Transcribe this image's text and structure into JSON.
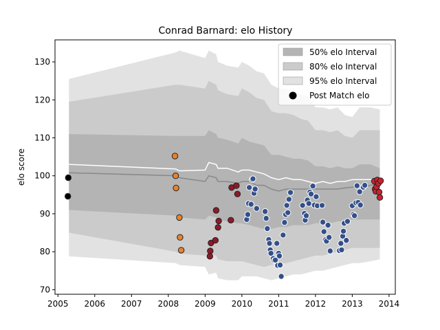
{
  "chart_data": {
    "type": "line",
    "title": "Conrad Barnard: elo History",
    "xlabel": "",
    "ylabel": "elo score",
    "xlim": [
      2004.92,
      2014.17
    ],
    "ylim": [
      68.8,
      135.8
    ],
    "xticks": [
      "2005",
      "2006",
      "2007",
      "2008",
      "2009",
      "2010",
      "2011",
      "2012",
      "2013",
      "2014"
    ],
    "yticks": [
      "70",
      "80",
      "90",
      "100",
      "110",
      "120",
      "130"
    ],
    "legend_position": "upper-right",
    "legend": [
      {
        "label": "50% elo Interval",
        "kind": "patch",
        "color": "#b4b4b4"
      },
      {
        "label": "80% elo Interval",
        "kind": "patch",
        "color": "#cbcbcb"
      },
      {
        "label": "95% elo Interval",
        "kind": "patch",
        "color": "#e2e2e2"
      },
      {
        "label": "Post Match elo",
        "kind": "marker",
        "color": "#000000"
      }
    ],
    "colors": {
      "band95": "#e2e2e2",
      "band80": "#cbcbcb",
      "band50": "#b4b4b4",
      "mean_line": "#ffffff",
      "median_line": "#888888",
      "orange": "#e8822e",
      "red": "#8b1a2a",
      "blue": "#34508a",
      "crimson": "#c8232e",
      "black": "#000000"
    },
    "bands": {
      "x": [
        2005.3,
        2008.2,
        2008.3,
        2009.0,
        2009.1,
        2009.3,
        2009.35,
        2009.6,
        2009.9,
        2010.0,
        2010.2,
        2010.4,
        2010.6,
        2010.8,
        2011.0,
        2011.2,
        2011.4,
        2011.6,
        2011.8,
        2012.0,
        2012.2,
        2012.4,
        2012.6,
        2012.8,
        2013.0,
        2013.2,
        2013.5,
        2013.75
      ],
      "p95_hi": [
        125.5,
        132.5,
        133.0,
        131.0,
        133.0,
        132.0,
        130.0,
        129.0,
        128.5,
        130.0,
        129.0,
        127.5,
        127.0,
        124.0,
        123.0,
        123.0,
        122.0,
        121.5,
        121.0,
        118.0,
        118.0,
        117.5,
        118.0,
        116.0,
        115.5,
        118.0,
        118.0,
        117.5
      ],
      "p80_hi": [
        119.5,
        124.0,
        124.0,
        123.0,
        125.0,
        124.0,
        122.5,
        121.5,
        121.0,
        123.0,
        122.0,
        120.5,
        120.0,
        117.0,
        116.5,
        116.5,
        116.0,
        115.0,
        114.5,
        112.0,
        112.0,
        111.5,
        112.0,
        110.5,
        110.0,
        112.0,
        112.0,
        112.0
      ],
      "p50_hi": [
        111.0,
        110.5,
        110.5,
        110.5,
        112.0,
        111.0,
        110.0,
        109.5,
        108.5,
        110.0,
        109.0,
        108.5,
        108.0,
        105.5,
        105.5,
        105.0,
        104.5,
        104.5,
        104.0,
        102.5,
        102.5,
        102.0,
        102.5,
        102.0,
        102.0,
        103.0,
        103.0,
        102.0
      ],
      "mean": [
        103.0,
        101.8,
        101.3,
        101.5,
        103.5,
        103.0,
        102.0,
        102.0,
        101.0,
        101.5,
        101.5,
        101.0,
        100.5,
        99.5,
        99.0,
        99.5,
        99.0,
        99.0,
        98.5,
        98.0,
        98.5,
        98.0,
        98.5,
        98.5,
        99.0,
        99.0,
        99.0,
        99.0
      ],
      "median": [
        100.8,
        100.0,
        99.5,
        98.5,
        100.0,
        99.5,
        98.5,
        98.5,
        98.0,
        98.5,
        98.5,
        97.5,
        97.5,
        96.5,
        96.0,
        96.5,
        96.5,
        96.5,
        96.5,
        96.5,
        96.5,
        96.5,
        96.5,
        96.8,
        97.0,
        97.0,
        97.5,
        98.0
      ],
      "p50_lo": [
        91.0,
        89.5,
        89.0,
        88.5,
        89.5,
        89.0,
        88.5,
        88.0,
        87.5,
        87.5,
        87.0,
        86.5,
        86.0,
        86.0,
        86.5,
        86.5,
        87.0,
        87.0,
        87.0,
        87.5,
        87.5,
        87.5,
        88.0,
        88.0,
        88.5,
        88.5,
        88.5,
        88.5
      ],
      "p80_lo": [
        85.0,
        80.0,
        79.5,
        79.0,
        79.5,
        79.0,
        78.0,
        77.5,
        77.5,
        77.5,
        77.0,
        76.5,
        76.0,
        76.5,
        77.0,
        77.0,
        77.5,
        78.0,
        78.5,
        79.0,
        79.0,
        79.5,
        80.0,
        80.5,
        81.0,
        81.0,
        81.0,
        81.0
      ],
      "p95_lo": [
        78.8,
        77.0,
        76.5,
        76.0,
        74.0,
        74.5,
        73.0,
        72.5,
        72.5,
        73.5,
        73.5,
        73.5,
        73.0,
        72.5,
        73.0,
        73.5,
        74.0,
        74.0,
        74.5,
        75.0,
        75.0,
        75.5,
        76.0,
        76.5,
        77.0,
        77.0,
        77.5,
        78.0
      ]
    },
    "series": [
      {
        "color_key": "black",
        "points": [
          [
            2005.28,
            99.5
          ],
          [
            2005.27,
            94.6
          ]
        ]
      },
      {
        "color_key": "orange",
        "points": [
          [
            2008.18,
            105.2
          ],
          [
            2008.2,
            100.0
          ],
          [
            2008.21,
            96.8
          ],
          [
            2008.3,
            89.0
          ],
          [
            2008.32,
            83.8
          ],
          [
            2008.35,
            80.4
          ]
        ]
      },
      {
        "color_key": "red",
        "points": [
          [
            2009.13,
            78.8
          ],
          [
            2009.14,
            80.2
          ],
          [
            2009.16,
            82.3
          ],
          [
            2009.28,
            83.0
          ],
          [
            2009.3,
            90.9
          ],
          [
            2009.35,
            86.4
          ],
          [
            2009.37,
            88.1
          ],
          [
            2009.7,
            88.3
          ],
          [
            2009.72,
            96.9
          ],
          [
            2009.85,
            97.4
          ],
          [
            2009.88,
            95.2
          ]
        ]
      },
      {
        "color_key": "blue",
        "points": [
          [
            2010.13,
            88.5
          ],
          [
            2010.16,
            89.8
          ],
          [
            2010.18,
            92.7
          ],
          [
            2010.2,
            96.9
          ],
          [
            2010.25,
            92.5
          ],
          [
            2010.28,
            99.0
          ],
          [
            2010.3,
            99.2
          ],
          [
            2010.33,
            95.4
          ],
          [
            2010.36,
            96.5
          ],
          [
            2010.4,
            91.4
          ],
          [
            2010.63,
            90.6
          ],
          [
            2010.66,
            88.8
          ],
          [
            2010.69,
            86.1
          ],
          [
            2010.73,
            83.2
          ],
          [
            2010.75,
            82.2
          ],
          [
            2010.77,
            80.5
          ],
          [
            2010.79,
            79.6
          ],
          [
            2010.85,
            78.2
          ],
          [
            2010.88,
            77.7
          ],
          [
            2010.91,
            77.8
          ],
          [
            2010.95,
            82.2
          ],
          [
            2010.97,
            76.4
          ],
          [
            2011.0,
            79.6
          ],
          [
            2011.02,
            78.9
          ],
          [
            2011.04,
            76.5
          ],
          [
            2011.07,
            73.5
          ],
          [
            2011.12,
            84.4
          ],
          [
            2011.16,
            87.7
          ],
          [
            2011.19,
            89.8
          ],
          [
            2011.22,
            92.2
          ],
          [
            2011.25,
            90.3
          ],
          [
            2011.28,
            93.8
          ],
          [
            2011.32,
            95.6
          ],
          [
            2011.65,
            92.2
          ],
          [
            2011.7,
            90.1
          ],
          [
            2011.72,
            88.3
          ],
          [
            2011.75,
            89.5
          ],
          [
            2011.78,
            93.6
          ],
          [
            2011.82,
            92.7
          ],
          [
            2011.85,
            95.7
          ],
          [
            2011.88,
            95.2
          ],
          [
            2011.93,
            97.3
          ],
          [
            2011.97,
            92.3
          ],
          [
            2012.02,
            94.5
          ],
          [
            2012.05,
            92.1
          ],
          [
            2012.18,
            92.2
          ],
          [
            2012.2,
            87.8
          ],
          [
            2012.23,
            85.3
          ],
          [
            2012.27,
            83.1
          ],
          [
            2012.3,
            82.8
          ],
          [
            2012.34,
            87.0
          ],
          [
            2012.37,
            83.8
          ],
          [
            2012.4,
            80.2
          ],
          [
            2012.65,
            80.3
          ],
          [
            2012.69,
            82.2
          ],
          [
            2012.71,
            80.5
          ],
          [
            2012.74,
            84.1
          ],
          [
            2012.76,
            85.4
          ],
          [
            2012.78,
            87.5
          ],
          [
            2012.84,
            83.0
          ],
          [
            2012.87,
            88.0
          ],
          [
            2013.0,
            92.1
          ],
          [
            2013.03,
            89.8
          ],
          [
            2013.06,
            89.5
          ],
          [
            2013.1,
            92.9
          ],
          [
            2013.13,
            97.4
          ],
          [
            2013.16,
            93.0
          ],
          [
            2013.2,
            95.8
          ],
          [
            2013.22,
            92.3
          ],
          [
            2013.3,
            97.0
          ],
          [
            2013.34,
            97.5
          ]
        ]
      },
      {
        "color_key": "crimson",
        "points": [
          [
            2013.6,
            98.6
          ],
          [
            2013.62,
            96.5
          ],
          [
            2013.64,
            95.9
          ],
          [
            2013.66,
            97.1
          ],
          [
            2013.68,
            98.9
          ],
          [
            2013.71,
            98.0
          ],
          [
            2013.73,
            95.7
          ],
          [
            2013.75,
            94.3
          ],
          [
            2013.77,
            98.7
          ]
        ]
      }
    ]
  }
}
